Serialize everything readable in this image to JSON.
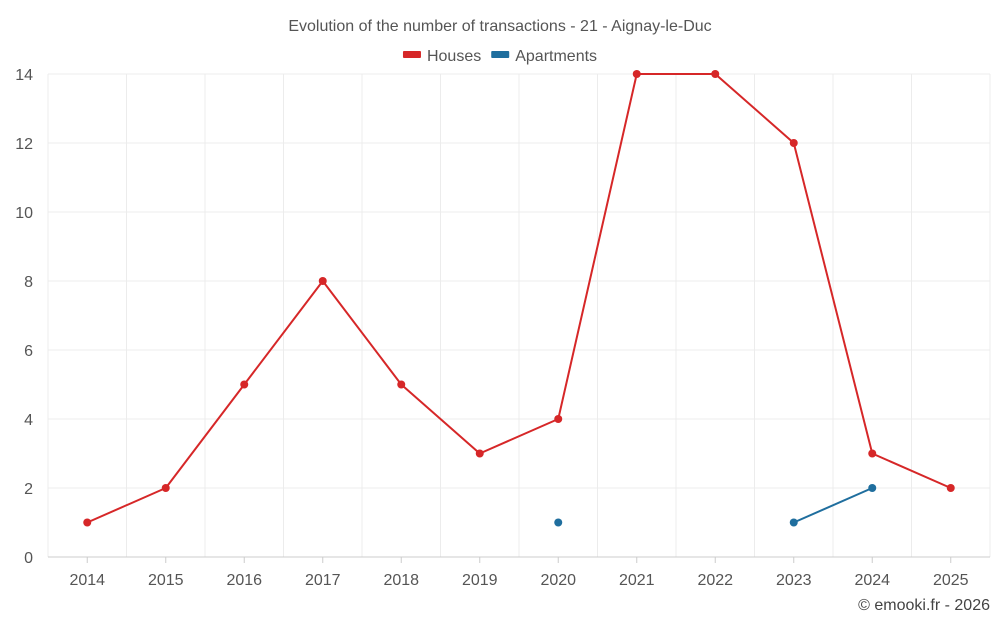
{
  "chart_data": {
    "type": "line",
    "title": "Evolution of the number of transactions - 21 - Aignay-le-Duc",
    "categories": [
      "2014",
      "2015",
      "2016",
      "2017",
      "2018",
      "2019",
      "2020",
      "2021",
      "2022",
      "2023",
      "2024",
      "2025"
    ],
    "series": [
      {
        "name": "Houses",
        "color": "#d62728",
        "values": [
          1,
          2,
          5,
          8,
          5,
          3,
          4,
          14,
          14,
          12,
          3,
          2
        ]
      },
      {
        "name": "Apartments",
        "color": "#1f6e9e",
        "values": [
          null,
          null,
          null,
          null,
          null,
          null,
          1,
          null,
          null,
          1,
          2,
          null
        ]
      }
    ],
    "ylim": [
      0,
      14
    ],
    "yticks": [
      0,
      2,
      4,
      6,
      8,
      10,
      12,
      14
    ],
    "grid": true,
    "legend_position": "top-center"
  },
  "credit": "© emooki.fr - 2026"
}
